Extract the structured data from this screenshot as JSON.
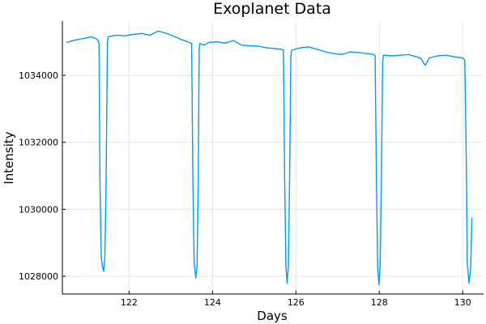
{
  "chart_data": {
    "type": "line",
    "title": "Exoplanet Data",
    "xlabel": "Days",
    "ylabel": "Intensity",
    "xlim": [
      120.4,
      130.5
    ],
    "ylim": [
      1027470,
      1035620
    ],
    "xticks": [
      122,
      124,
      126,
      128,
      130
    ],
    "xtick_labels": [
      "122",
      "124",
      "126",
      "128",
      "130"
    ],
    "yticks": [
      1028000,
      1030000,
      1032000,
      1034000
    ],
    "ytick_labels": [
      "1028000",
      "1030000",
      "1032000",
      "1034000"
    ],
    "grid": true,
    "legend": "none",
    "line_color": "#009AF9",
    "series": [
      {
        "values": [
          [
            120.5,
            1034980
          ],
          [
            120.7,
            1035050
          ],
          [
            120.9,
            1035100
          ],
          [
            121.0,
            1035120
          ],
          [
            121.1,
            1035150
          ],
          [
            121.2,
            1035100
          ],
          [
            121.25,
            1035050
          ],
          [
            121.28,
            1034950
          ],
          [
            121.3,
            1031000
          ],
          [
            121.33,
            1028600
          ],
          [
            121.36,
            1028300
          ],
          [
            121.39,
            1028150
          ],
          [
            121.42,
            1028600
          ],
          [
            121.45,
            1031000
          ],
          [
            121.48,
            1035000
          ],
          [
            121.5,
            1035150
          ],
          [
            121.7,
            1035200
          ],
          [
            121.9,
            1035180
          ],
          [
            122.1,
            1035220
          ],
          [
            122.3,
            1035250
          ],
          [
            122.5,
            1035200
          ],
          [
            122.7,
            1035320
          ],
          [
            122.9,
            1035250
          ],
          [
            123.1,
            1035150
          ],
          [
            123.3,
            1035050
          ],
          [
            123.45,
            1034980
          ],
          [
            123.5,
            1034950
          ],
          [
            123.53,
            1031000
          ],
          [
            123.56,
            1028400
          ],
          [
            123.6,
            1027950
          ],
          [
            123.63,
            1028300
          ],
          [
            123.66,
            1031000
          ],
          [
            123.68,
            1034800
          ],
          [
            123.7,
            1034950
          ],
          [
            123.8,
            1034900
          ],
          [
            123.9,
            1034980
          ],
          [
            124.1,
            1035000
          ],
          [
            124.3,
            1034960
          ],
          [
            124.5,
            1035040
          ],
          [
            124.7,
            1034900
          ],
          [
            124.9,
            1034880
          ],
          [
            125.1,
            1034870
          ],
          [
            125.3,
            1034820
          ],
          [
            125.5,
            1034800
          ],
          [
            125.65,
            1034780
          ],
          [
            125.7,
            1034750
          ],
          [
            125.73,
            1031000
          ],
          [
            125.76,
            1028300
          ],
          [
            125.79,
            1027800
          ],
          [
            125.82,
            1028300
          ],
          [
            125.85,
            1031000
          ],
          [
            125.88,
            1034600
          ],
          [
            125.9,
            1034750
          ],
          [
            126.1,
            1034820
          ],
          [
            126.3,
            1034850
          ],
          [
            126.5,
            1034780
          ],
          [
            126.7,
            1034700
          ],
          [
            126.9,
            1034650
          ],
          [
            127.1,
            1034620
          ],
          [
            127.3,
            1034700
          ],
          [
            127.5,
            1034680
          ],
          [
            127.7,
            1034650
          ],
          [
            127.85,
            1034630
          ],
          [
            127.9,
            1034580
          ],
          [
            127.93,
            1031000
          ],
          [
            127.96,
            1028300
          ],
          [
            127.99,
            1027750
          ],
          [
            128.02,
            1028300
          ],
          [
            128.05,
            1031000
          ],
          [
            128.08,
            1034400
          ],
          [
            128.1,
            1034600
          ],
          [
            128.3,
            1034580
          ],
          [
            128.5,
            1034600
          ],
          [
            128.7,
            1034620
          ],
          [
            128.9,
            1034550
          ],
          [
            129.0,
            1034500
          ],
          [
            129.1,
            1034300
          ],
          [
            129.2,
            1034520
          ],
          [
            129.4,
            1034580
          ],
          [
            129.6,
            1034600
          ],
          [
            129.8,
            1034550
          ],
          [
            130.0,
            1034520
          ],
          [
            130.05,
            1034450
          ],
          [
            130.08,
            1032000
          ],
          [
            130.11,
            1028400
          ],
          [
            130.15,
            1027800
          ],
          [
            130.19,
            1028200
          ],
          [
            130.22,
            1029750
          ]
        ]
      }
    ]
  }
}
